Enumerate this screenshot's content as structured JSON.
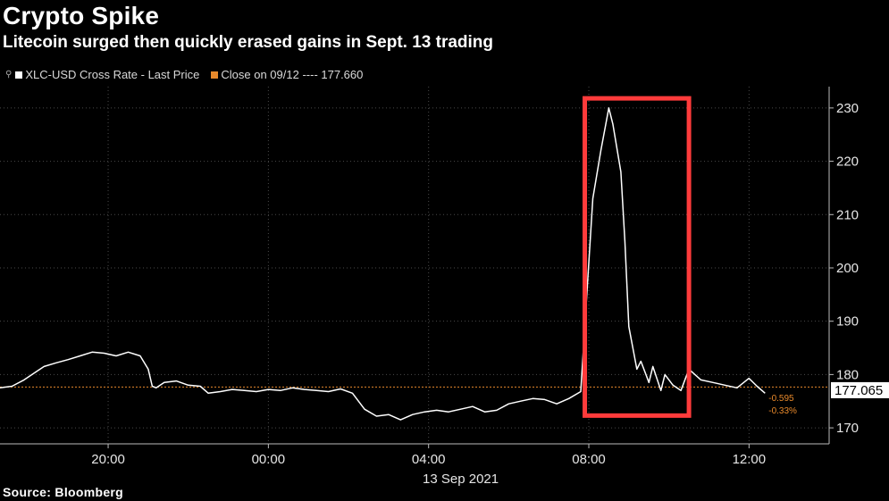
{
  "header": {
    "title": "Crypto Spike",
    "subtitle": "Litecoin surged then quickly erased gains in Sept. 13 trading"
  },
  "legend": {
    "series_label": "XLC-USD Cross Rate - Last Price",
    "close_label": "Close on 09/12 ---- 177.660"
  },
  "footer": {
    "source": "Source: Bloomberg"
  },
  "colors": {
    "background": "#000000",
    "series": "#ffffff",
    "close_line": "#e8892b",
    "highlight_box": "#ff3b3b",
    "grid": "#4a4a4a"
  },
  "chart_data": {
    "type": "line",
    "title": "Crypto Spike",
    "subtitle": "Litecoin surged then quickly erased gains in Sept. 13 trading",
    "x_unit": "hours relative to 00:00 on 13 Sep 2021",
    "xlim": [
      -6.7,
      14.0
    ],
    "ylim": [
      167,
      234
    ],
    "grid": true,
    "y_ticks": [
      170,
      180,
      190,
      200,
      210,
      220,
      230
    ],
    "y_tick_labels": [
      "170",
      "180",
      "190",
      "200",
      "210",
      "220",
      "230"
    ],
    "x_ticks": [
      -4,
      0,
      4,
      8,
      12
    ],
    "x_tick_labels": [
      "20:00",
      "00:00",
      "04:00",
      "08:00",
      "12:00"
    ],
    "x_sublabel": "13 Sep 2021",
    "series": [
      {
        "name": "XLC-USD Cross Rate - Last Price",
        "x": [
          -6.7,
          -6.4,
          -6.1,
          -5.8,
          -5.6,
          -5.3,
          -5.0,
          -4.7,
          -4.4,
          -4.1,
          -3.8,
          -3.5,
          -3.2,
          -3.0,
          -2.9,
          -2.8,
          -2.6,
          -2.3,
          -2.0,
          -1.7,
          -1.5,
          -1.2,
          -0.9,
          -0.6,
          -0.3,
          0.0,
          0.3,
          0.6,
          0.9,
          1.2,
          1.5,
          1.8,
          2.1,
          2.4,
          2.7,
          3.0,
          3.3,
          3.6,
          3.9,
          4.2,
          4.5,
          4.8,
          5.1,
          5.4,
          5.7,
          6.0,
          6.3,
          6.6,
          6.9,
          7.2,
          7.5,
          7.8,
          8.1,
          8.3,
          8.5,
          8.6,
          8.8,
          8.9,
          9.0,
          9.2,
          9.3,
          9.5,
          9.6,
          9.8,
          9.9,
          10.1,
          10.3,
          10.5,
          10.8,
          11.1,
          11.4,
          11.7,
          12.0,
          12.2,
          12.4
        ],
        "y": [
          177.5,
          177.8,
          179.0,
          180.5,
          181.5,
          182.2,
          182.8,
          183.5,
          184.2,
          184.0,
          183.5,
          184.2,
          183.5,
          181.0,
          177.8,
          177.5,
          178.5,
          178.8,
          178.0,
          177.8,
          176.5,
          176.8,
          177.2,
          177.0,
          176.8,
          177.2,
          177.0,
          177.5,
          177.2,
          177.0,
          176.8,
          177.3,
          176.5,
          173.5,
          172.2,
          172.5,
          171.5,
          172.5,
          173.0,
          173.3,
          173.0,
          173.5,
          174.0,
          173.0,
          173.3,
          174.5,
          175.0,
          175.5,
          175.3,
          174.5,
          175.5,
          176.8,
          213.0,
          222.0,
          230.0,
          227.0,
          218.0,
          205.0,
          189.0,
          181.0,
          182.5,
          178.5,
          181.5,
          177.0,
          180.0,
          178.0,
          177.0,
          181.0,
          179.0,
          178.5,
          178.0,
          177.5,
          179.3,
          177.8,
          176.5
        ]
      }
    ],
    "reference_line": {
      "name": "Close on 09/12",
      "value": 177.66
    },
    "last_value": 177.065,
    "last_value_label": "177.065",
    "change_abs_label": "-0.595",
    "change_pct_label": "-0.33%",
    "highlight": {
      "x_range": [
        7.9,
        10.5
      ],
      "y_range": [
        172.3,
        231.8
      ]
    }
  }
}
